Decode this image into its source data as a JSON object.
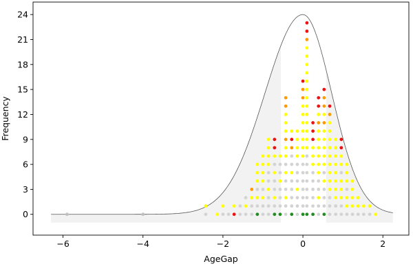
{
  "chart_data": {
    "type": "scatter",
    "title": "",
    "xlabel": "AgeGap",
    "ylabel": "Frequency",
    "xlim": [
      -6.75,
      2.65
    ],
    "ylim": [
      -2.5,
      25.5
    ],
    "xticks": [
      -6,
      -4,
      -2,
      0,
      2
    ],
    "yticks": [
      0,
      3,
      6,
      9,
      12,
      15,
      18,
      21,
      24
    ],
    "grid": false,
    "legend": "none",
    "colors": {
      "light-gray": "#d3d3d3",
      "gray": "#bfbfbf",
      "yellow": "#ffff00",
      "orange": "#ff9900",
      "red": "#ee1111",
      "green": "#228b22",
      "shade": "#f2f2f2",
      "curve": "#555555"
    },
    "density_curve": {
      "x_range": [
        -6.3,
        2.25
      ],
      "peak": 24,
      "center": 0,
      "sigma_left": 0.95,
      "sigma_right": 0.72,
      "baseline": 0,
      "shaded_ranges": [
        [
          -6.3,
          -0.55
        ],
        [
          0.58,
          2.25
        ]
      ],
      "shade_floor": -1
    },
    "series": [
      {
        "x": -5.9,
        "color": "gray",
        "counts": 1,
        "base": 0
      },
      {
        "x": -4.0,
        "color": "gray",
        "counts": 1,
        "base": 0
      },
      {
        "x": -2.43,
        "stack": [
          "light-gray",
          "yellow"
        ]
      },
      {
        "x": -2.14,
        "stack": [
          "yellow"
        ]
      },
      {
        "x": -2.0,
        "stack": [
          "light-gray",
          "yellow"
        ]
      },
      {
        "x": -1.86,
        "stack": [
          "light-gray"
        ]
      },
      {
        "x": -1.72,
        "stack": [
          "red",
          "yellow"
        ]
      },
      {
        "x": -1.57,
        "stack": [
          "light-gray",
          "light-gray"
        ]
      },
      {
        "x": -1.43,
        "stack": [
          "light-gray",
          "yellow",
          "light-gray"
        ]
      },
      {
        "x": -1.28,
        "stack": [
          "light-gray",
          "light-gray",
          "yellow",
          "orange"
        ]
      },
      {
        "x": -1.14,
        "stack": [
          "green",
          "light-gray",
          "yellow",
          "light-gray",
          "yellow",
          "yellow",
          "yellow"
        ]
      },
      {
        "x": -1.0,
        "stack": [
          "light-gray",
          "light-gray",
          "yellow",
          "light-gray",
          "yellow",
          "yellow",
          "yellow",
          "yellow"
        ]
      },
      {
        "x": -0.86,
        "stack": [
          "light-gray",
          "light-gray",
          "light-gray",
          "yellow",
          "light-gray",
          "light-gray",
          "yellow",
          "yellow",
          "yellow",
          "yellow"
        ]
      },
      {
        "x": -0.71,
        "stack": [
          "green",
          "light-gray",
          "yellow",
          "light-gray",
          "light-gray",
          "yellow",
          "light-gray",
          "yellow",
          "red",
          "red"
        ]
      },
      {
        "x": -0.57,
        "stack": [
          "green",
          "light-gray",
          "light-gray",
          "light-gray",
          "yellow",
          "light-gray",
          "light-gray",
          "yellow"
        ]
      },
      {
        "x": -0.43,
        "stack": [
          "light-gray",
          "light-gray",
          "yellow",
          "light-gray",
          "light-gray",
          "yellow",
          "light-gray",
          "yellow",
          "yellow",
          "orange",
          "yellow",
          "yellow",
          "yellow",
          "orange",
          "orange"
        ]
      },
      {
        "x": -0.28,
        "stack": [
          "green",
          "light-gray",
          "light-gray",
          "light-gray",
          "light-gray",
          "yellow",
          "light-gray",
          "light-gray",
          "orange",
          "red",
          "yellow"
        ]
      },
      {
        "x": -0.14,
        "stack": [
          "light-gray",
          "light-gray",
          "light-gray",
          "yellow",
          "light-gray",
          "light-gray",
          "light-gray",
          "yellow",
          "yellow",
          "yellow",
          "yellow"
        ]
      },
      {
        "x": 0.0,
        "stack": [
          "green",
          "light-gray",
          "light-gray",
          "light-gray",
          "light-gray",
          "light-gray",
          "light-gray",
          "yellow",
          "yellow",
          "yellow",
          "yellow",
          "yellow",
          "yellow",
          "yellow",
          "orange",
          "orange",
          "red"
        ]
      },
      {
        "x": 0.1,
        "stack": [
          "green",
          "light-gray",
          "light-gray",
          "light-gray",
          "light-gray",
          "light-gray",
          "light-gray",
          "light-gray",
          "yellow",
          "yellow",
          "yellow",
          "yellow",
          "yellow",
          "yellow",
          "yellow",
          "yellow",
          "yellow",
          "yellow",
          "yellow",
          "yellow",
          "yellow",
          "orange",
          "red",
          "red"
        ]
      },
      {
        "x": 0.25,
        "stack": [
          "green",
          "light-gray",
          "light-gray",
          "light-gray",
          "light-gray",
          "light-gray",
          "yellow",
          "yellow",
          "yellow",
          "red",
          "red",
          "red"
        ]
      },
      {
        "x": 0.39,
        "stack": [
          "light-gray",
          "light-gray",
          "yellow",
          "light-gray",
          "light-gray",
          "yellow",
          "yellow",
          "yellow",
          "yellow",
          "yellow",
          "yellow",
          "orange",
          "yellow",
          "red",
          "red"
        ]
      },
      {
        "x": 0.53,
        "stack": [
          "green",
          "light-gray",
          "light-gray",
          "light-gray",
          "yellow",
          "light-gray",
          "yellow",
          "yellow",
          "yellow",
          "yellow",
          "yellow",
          "orange",
          "yellow",
          "orange",
          "orange",
          "red"
        ]
      },
      {
        "x": 0.67,
        "stack": [
          "light-gray",
          "light-gray",
          "light-gray",
          "yellow",
          "yellow",
          "yellow",
          "yellow",
          "yellow",
          "yellow",
          "yellow",
          "yellow",
          "yellow",
          "orange",
          "red"
        ]
      },
      {
        "x": 0.82,
        "stack": [
          "light-gray",
          "light-gray",
          "yellow",
          "yellow",
          "yellow",
          "yellow",
          "yellow",
          "yellow",
          "yellow",
          "yellow"
        ]
      },
      {
        "x": 0.96,
        "stack": [
          "light-gray",
          "light-gray",
          "yellow",
          "yellow",
          "yellow",
          "light-gray",
          "yellow",
          "yellow",
          "red",
          "red"
        ]
      },
      {
        "x": 1.1,
        "stack": [
          "light-gray",
          "yellow",
          "yellow",
          "light-gray",
          "yellow",
          "yellow",
          "yellow"
        ]
      },
      {
        "x": 1.24,
        "stack": [
          "light-gray",
          "yellow",
          "yellow",
          "yellow",
          "yellow"
        ]
      },
      {
        "x": 1.38,
        "stack": [
          "light-gray",
          "yellow",
          "yellow"
        ]
      },
      {
        "x": 1.52,
        "stack": [
          "light-gray",
          "yellow"
        ]
      },
      {
        "x": 1.67,
        "stack": [
          "light-gray",
          "yellow"
        ]
      },
      {
        "x": 1.82,
        "stack": [
          "yellow"
        ]
      }
    ]
  }
}
